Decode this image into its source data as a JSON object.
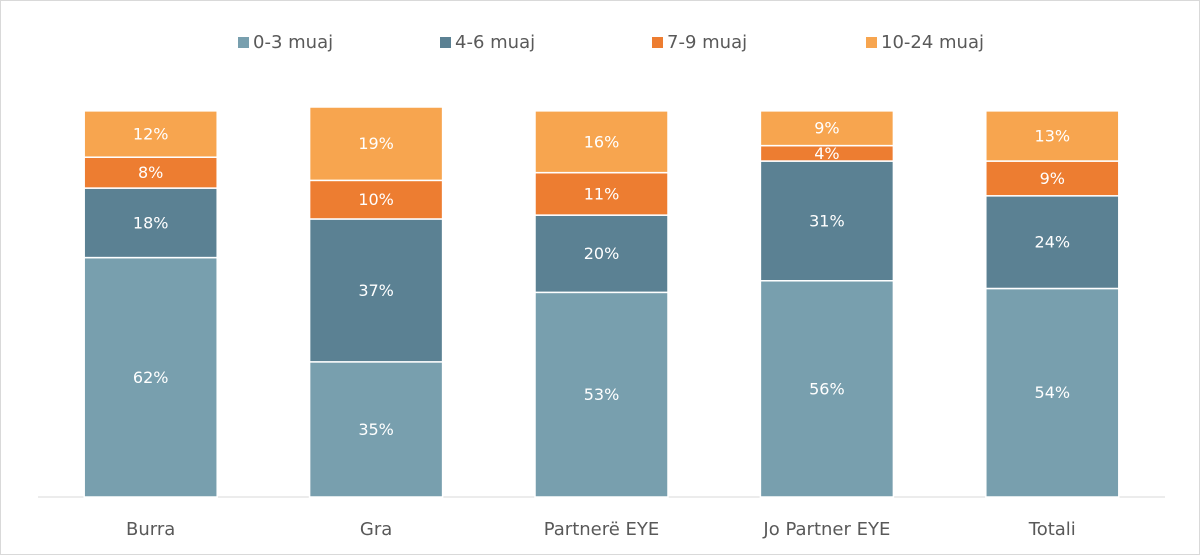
{
  "chart_data": {
    "type": "stacked_bar",
    "categories": [
      "Burra",
      "Gra",
      "Partnerë EYE",
      "Jo Partner EYE",
      "Totali"
    ],
    "series": [
      {
        "name": "0-3 muaj",
        "color": "#789fae",
        "values": [
          62,
          35,
          53,
          56,
          54
        ],
        "value_labels": [
          "62%",
          "35%",
          "53%",
          "56%",
          "54%"
        ]
      },
      {
        "name": "4-6 muaj",
        "color": "#5b8193",
        "values": [
          18,
          37,
          20,
          31,
          24
        ],
        "value_labels": [
          "18%",
          "37%",
          "20%",
          "31%",
          "24%"
        ]
      },
      {
        "name": "7-9 muaj",
        "color": "#ed7d31",
        "values": [
          8,
          10,
          11,
          4,
          9
        ],
        "value_labels": [
          "8%",
          "10%",
          "11%",
          "4%",
          "9%"
        ]
      },
      {
        "name": "10-24 muaj",
        "color": "#f7a54f",
        "values": [
          12,
          19,
          16,
          9,
          13
        ],
        "value_labels": [
          "12%",
          "19%",
          "16%",
          "9%",
          "13%"
        ]
      }
    ],
    "legend": "top"
  }
}
